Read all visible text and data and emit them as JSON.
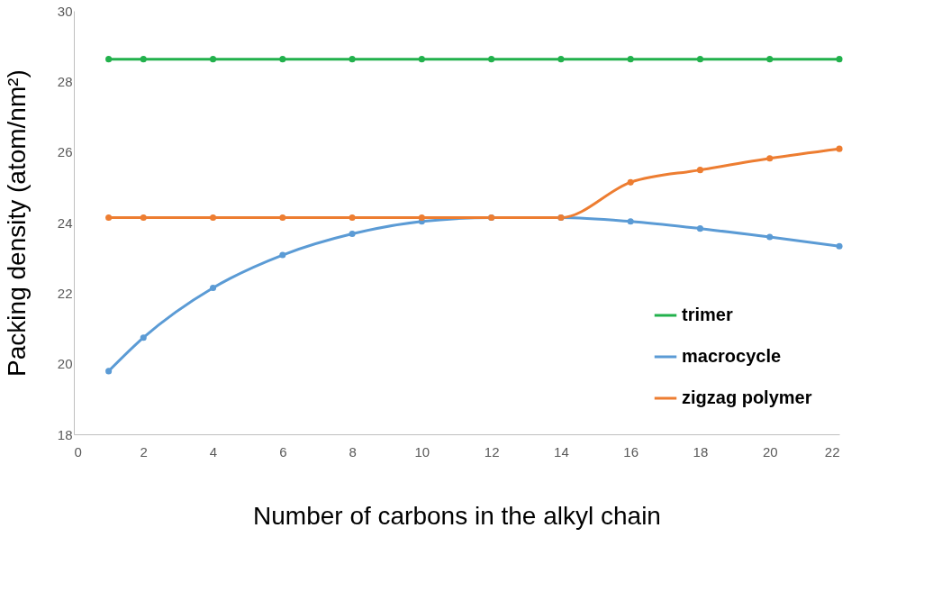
{
  "chart_data": {
    "type": "line",
    "xlabel": "Number of carbons in the alkyl chain",
    "ylabel": "Packing density (atom/nm²)",
    "x": [
      1,
      2,
      4,
      6,
      8,
      10,
      12,
      14,
      16,
      18,
      20,
      22
    ],
    "xlim": [
      0,
      22
    ],
    "xticks": [
      0,
      2,
      4,
      6,
      8,
      10,
      12,
      14,
      16,
      18,
      20,
      22
    ],
    "ylim": [
      18,
      30
    ],
    "yticks": [
      18,
      20,
      22,
      24,
      26,
      28,
      30
    ],
    "grid": false,
    "legend": "bottom right",
    "marker": "circle",
    "line_style": "solid",
    "series": [
      {
        "name": "trimer",
        "color": "#22b14c",
        "values": [
          28.63,
          28.63,
          28.63,
          28.63,
          28.63,
          28.63,
          28.63,
          28.63,
          28.63,
          28.63,
          28.63,
          28.63
        ]
      },
      {
        "name": "macrocycle",
        "color": "#5b9bd5",
        "values": [
          19.79,
          20.74,
          22.15,
          23.08,
          23.68,
          24.03,
          24.14,
          24.14,
          24.03,
          23.83,
          23.59,
          23.33
        ]
      },
      {
        "name": "zigzag polymer",
        "color": "#ed7d31",
        "values": [
          24.14,
          24.14,
          24.14,
          24.14,
          24.14,
          24.14,
          24.14,
          24.14,
          25.14,
          25.49,
          25.82,
          26.09
        ]
      }
    ]
  }
}
